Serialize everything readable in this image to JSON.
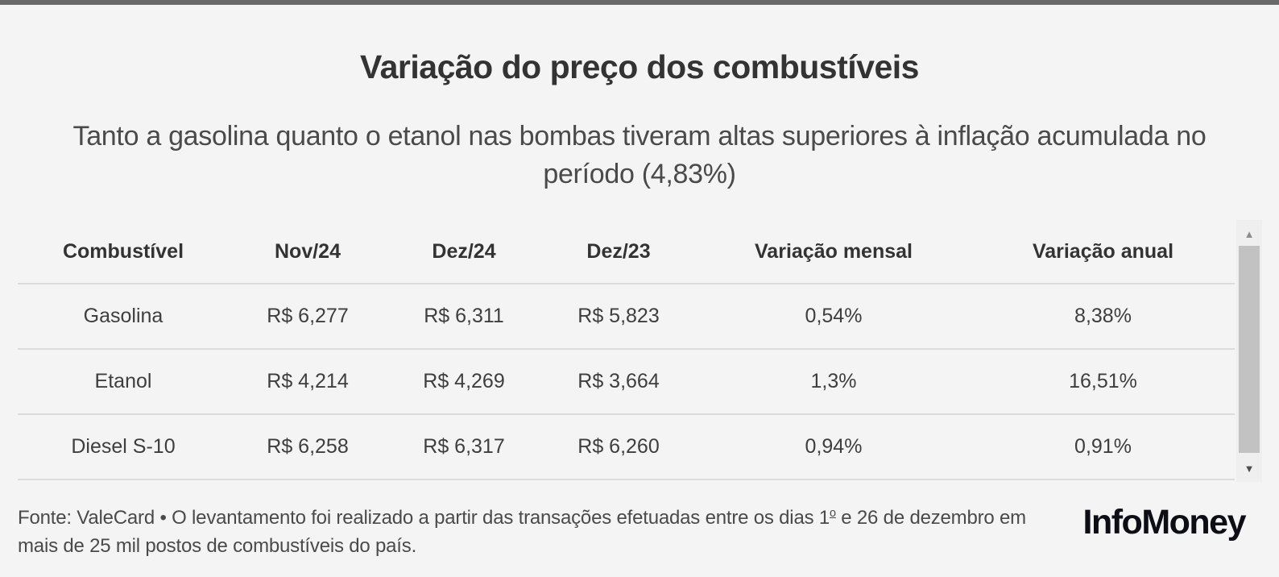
{
  "header": {
    "title": "Variação do preço dos combustíveis",
    "subtitle": "Tanto a gasolina quanto o etanol nas bombas tiveram altas superiores à inflação acumulada no período (4,83%)"
  },
  "chart_data": {
    "type": "table",
    "title": "Variação do preço dos combustíveis",
    "subtitle": "Tanto a gasolina quanto o etanol nas bombas tiveram altas superiores à inflação acumulada no período (4,83%)",
    "columns": [
      "Combustível",
      "Nov/24",
      "Dez/24",
      "Dez/23",
      "Variação mensal",
      "Variação anual"
    ],
    "rows": [
      [
        "Gasolina",
        "R$ 6,277",
        "R$ 6,311",
        "R$ 5,823",
        "0,54%",
        "8,38%"
      ],
      [
        "Etanol",
        "R$ 4,214",
        "R$ 4,269",
        "R$ 3,664",
        "1,3%",
        "16,51%"
      ],
      [
        "Diesel S-10",
        "R$ 6,258",
        "R$ 6,317",
        "R$ 6,260",
        "0,94%",
        "0,91%"
      ]
    ]
  },
  "scrollbar": {
    "up_icon": "▲",
    "down_icon": "▼"
  },
  "footer": {
    "source_part1": "Fonte: ValeCard • O levantamento foi realizado a partir das transações efetuadas entre os dias 1",
    "source_ordinal": "o",
    "source_part2": " e 26 de dezembro em mais de 25 mil postos de combustíveis do país.",
    "logo": "InfoMoney"
  },
  "colors": {
    "top_bar": "#696969",
    "background": "#f4f4f4",
    "title_text": "#333333",
    "body_text": "#3e3e3e",
    "divider": "#dcdcdc",
    "scrollbar_track": "#efefef",
    "scrollbar_thumb": "#c2c2c2",
    "logo_text": "#0d0d15"
  }
}
